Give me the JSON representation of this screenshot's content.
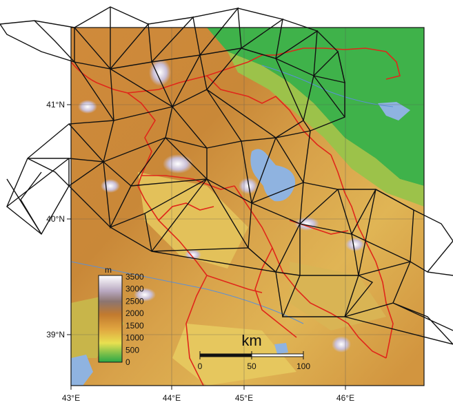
{
  "map": {
    "lon_labels": [
      "43°E",
      "44°E",
      "45°E",
      "46°E"
    ],
    "lat_labels": [
      "41°N",
      "40°N",
      "39°N"
    ],
    "legend": {
      "unit": "m",
      "ticks": [
        "3500",
        "3000",
        "2500",
        "2000",
        "1500",
        "1000",
        "500",
        "0"
      ]
    },
    "scalebar": {
      "unit": "km",
      "ticks": [
        "0",
        "50",
        "100"
      ]
    }
  }
}
